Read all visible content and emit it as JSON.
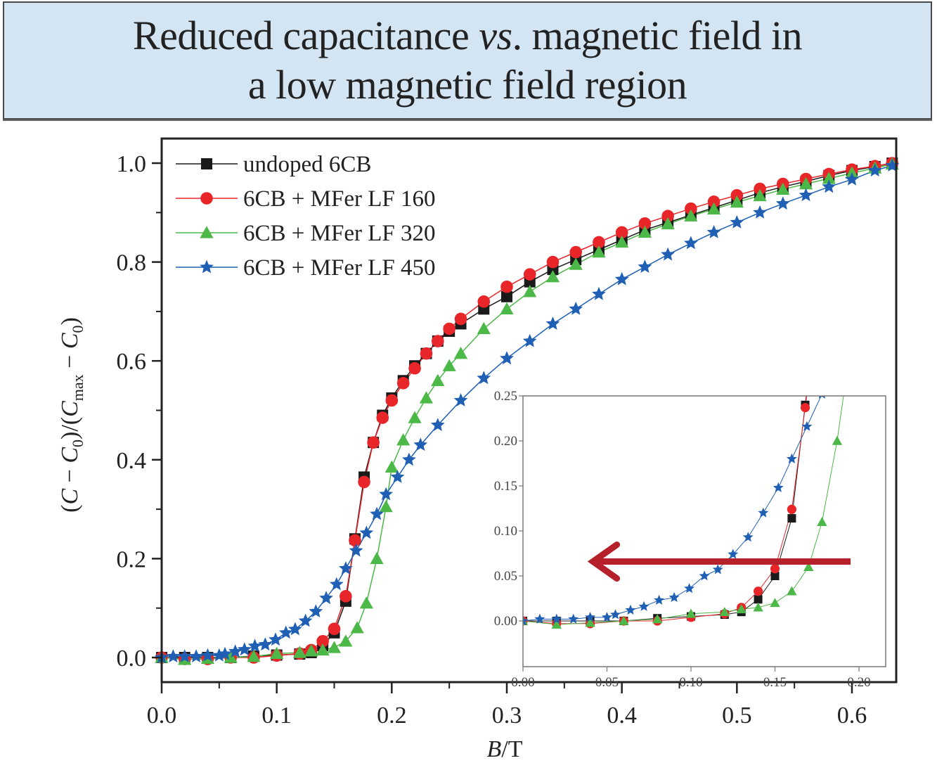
{
  "header": {
    "title_line1_pre": "Reduced capacitance ",
    "title_line1_italic": "vs",
    "title_line1_post": ". magnetic field in",
    "title_line2": "a low magnetic field region",
    "background": "#d3e4f3"
  },
  "chart_data": [
    {
      "id": "main",
      "type": "line",
      "title": "Reduced capacitance vs. magnetic field in a low magnetic field region",
      "xlabel": "B/T",
      "ylabel": "(C − C0)/(Cmax − C0)",
      "xlim": [
        0.0,
        0.64
      ],
      "ylim": [
        -0.05,
        1.05
      ],
      "xticks": [
        0.0,
        0.1,
        0.2,
        0.3,
        0.4,
        0.5,
        0.6
      ],
      "xtick_labels": [
        "0.0",
        "0.1",
        "0.2",
        "0.3",
        "0.4",
        "0.5",
        "0.6"
      ],
      "yticks": [
        0.0,
        0.2,
        0.4,
        0.6,
        0.8,
        1.0
      ],
      "ytick_labels": [
        "0.0",
        "0.2",
        "0.4",
        "0.6",
        "0.8",
        "1.0"
      ],
      "grid": false,
      "legend_position": "top-left",
      "series": [
        {
          "name": "undoped 6CB",
          "color": "#1a1a1a",
          "marker": "square",
          "x": [
            0.0,
            0.02,
            0.04,
            0.06,
            0.08,
            0.1,
            0.12,
            0.13,
            0.14,
            0.15,
            0.16,
            0.168,
            0.176,
            0.184,
            0.192,
            0.2,
            0.21,
            0.22,
            0.23,
            0.24,
            0.25,
            0.26,
            0.28,
            0.3,
            0.32,
            0.34,
            0.36,
            0.38,
            0.4,
            0.42,
            0.44,
            0.46,
            0.48,
            0.5,
            0.52,
            0.54,
            0.56,
            0.58,
            0.6,
            0.62,
            0.635
          ],
          "y": [
            0.0,
            0.0,
            0.0,
            0.0,
            0.003,
            0.005,
            0.007,
            0.01,
            0.024,
            0.05,
            0.114,
            0.24,
            0.365,
            0.435,
            0.49,
            0.525,
            0.56,
            0.59,
            0.615,
            0.64,
            0.66,
            0.675,
            0.705,
            0.73,
            0.76,
            0.785,
            0.805,
            0.825,
            0.845,
            0.865,
            0.88,
            0.895,
            0.91,
            0.925,
            0.94,
            0.952,
            0.963,
            0.975,
            0.985,
            0.993,
            1.0
          ]
        },
        {
          "name": "6CB + MFer LF 160",
          "color": "#e8262a",
          "marker": "circle",
          "x": [
            0.0,
            0.02,
            0.04,
            0.06,
            0.08,
            0.1,
            0.12,
            0.13,
            0.14,
            0.15,
            0.16,
            0.168,
            0.176,
            0.184,
            0.192,
            0.2,
            0.21,
            0.22,
            0.23,
            0.24,
            0.25,
            0.26,
            0.28,
            0.3,
            0.32,
            0.34,
            0.36,
            0.38,
            0.4,
            0.42,
            0.44,
            0.46,
            0.48,
            0.5,
            0.52,
            0.54,
            0.56,
            0.58,
            0.6,
            0.62,
            0.635
          ],
          "y": [
            0.0,
            -0.003,
            -0.003,
            0.0,
            0.0,
            0.004,
            0.008,
            0.015,
            0.033,
            0.058,
            0.124,
            0.237,
            0.355,
            0.435,
            0.485,
            0.52,
            0.555,
            0.585,
            0.615,
            0.64,
            0.665,
            0.685,
            0.72,
            0.75,
            0.775,
            0.8,
            0.82,
            0.84,
            0.86,
            0.878,
            0.893,
            0.908,
            0.922,
            0.935,
            0.948,
            0.958,
            0.968,
            0.978,
            0.987,
            0.994,
            1.0
          ]
        },
        {
          "name": "6CB + MFer LF 320",
          "color": "#4cb848",
          "marker": "triangle",
          "x": [
            0.0,
            0.02,
            0.04,
            0.06,
            0.08,
            0.1,
            0.12,
            0.13,
            0.14,
            0.15,
            0.16,
            0.17,
            0.178,
            0.187,
            0.195,
            0.2,
            0.21,
            0.22,
            0.23,
            0.24,
            0.25,
            0.26,
            0.28,
            0.3,
            0.32,
            0.34,
            0.36,
            0.38,
            0.4,
            0.42,
            0.44,
            0.46,
            0.48,
            0.5,
            0.52,
            0.54,
            0.56,
            0.58,
            0.6,
            0.62,
            0.635
          ],
          "y": [
            0.0,
            -0.004,
            -0.002,
            0.0,
            0.002,
            0.008,
            0.01,
            0.013,
            0.015,
            0.02,
            0.033,
            0.06,
            0.11,
            0.2,
            0.305,
            0.385,
            0.44,
            0.485,
            0.525,
            0.56,
            0.59,
            0.615,
            0.665,
            0.705,
            0.74,
            0.77,
            0.795,
            0.82,
            0.84,
            0.86,
            0.877,
            0.893,
            0.907,
            0.921,
            0.934,
            0.947,
            0.958,
            0.969,
            0.98,
            0.99,
            0.998
          ]
        },
        {
          "name": "6CB + MFer LF 450",
          "color": "#1f5fb4",
          "marker": "star",
          "x": [
            0.0,
            0.01,
            0.02,
            0.03,
            0.04,
            0.05,
            0.055,
            0.064,
            0.072,
            0.081,
            0.09,
            0.099,
            0.108,
            0.116,
            0.125,
            0.134,
            0.143,
            0.152,
            0.16,
            0.169,
            0.178,
            0.187,
            0.195,
            0.205,
            0.215,
            0.225,
            0.24,
            0.26,
            0.28,
            0.3,
            0.32,
            0.34,
            0.36,
            0.38,
            0.4,
            0.42,
            0.44,
            0.46,
            0.48,
            0.5,
            0.52,
            0.54,
            0.56,
            0.58,
            0.6,
            0.62,
            0.635
          ],
          "y": [
            0.0,
            0.002,
            0.002,
            0.002,
            0.004,
            0.004,
            0.007,
            0.012,
            0.016,
            0.023,
            0.026,
            0.036,
            0.05,
            0.057,
            0.074,
            0.093,
            0.12,
            0.148,
            0.18,
            0.216,
            0.252,
            0.29,
            0.33,
            0.365,
            0.4,
            0.43,
            0.47,
            0.52,
            0.565,
            0.605,
            0.64,
            0.675,
            0.705,
            0.735,
            0.765,
            0.79,
            0.815,
            0.838,
            0.86,
            0.88,
            0.9,
            0.918,
            0.935,
            0.952,
            0.967,
            0.985,
            0.995
          ]
        }
      ]
    },
    {
      "id": "inset",
      "type": "line",
      "xlim": [
        0.0,
        0.22
      ],
      "ylim": [
        -0.035,
        0.25
      ],
      "xticks": [
        0.0,
        0.05,
        0.1,
        0.15,
        0.2
      ],
      "xtick_labels": [
        "0.00",
        "0.05",
        "0.10",
        "0.15",
        "0.20"
      ],
      "yticks": [
        0.0,
        0.05,
        0.1,
        0.15,
        0.2,
        0.25
      ],
      "ytick_labels": [
        "0.00",
        "0.05",
        "0.10",
        "0.15",
        "0.20",
        "0.25"
      ],
      "grid": false,
      "annotation": {
        "type": "arrow",
        "direction": "left",
        "color": "#b5202a",
        "from": [
          0.195,
          0.066
        ],
        "to": [
          0.04,
          0.066
        ]
      },
      "series_ref": "main"
    }
  ]
}
